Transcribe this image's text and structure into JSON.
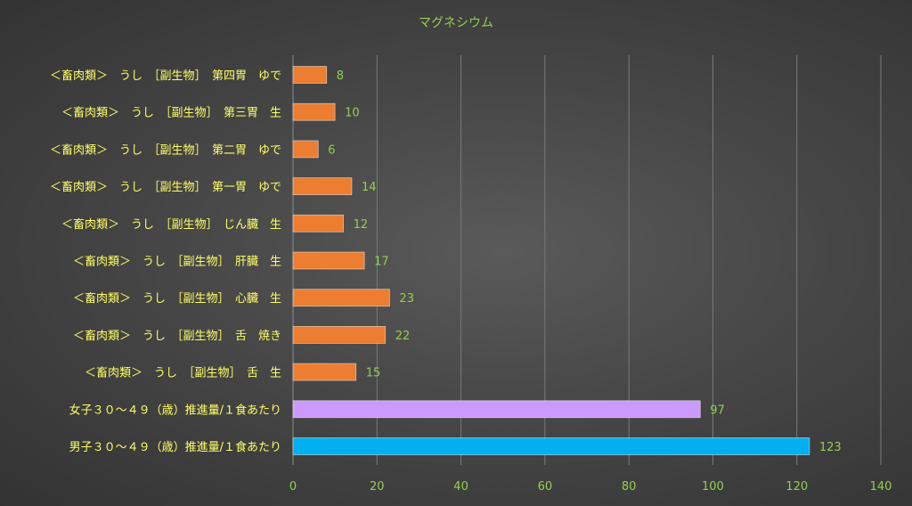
{
  "chart_data": {
    "type": "bar",
    "orientation": "horizontal",
    "title": "マグネシウム",
    "categories": [
      "＜畜肉類＞　うし　［副生物］　第四胃　ゆで",
      "＜畜肉類＞　うし　［副生物］　第三胃　生",
      "＜畜肉類＞　うし　［副生物］　第二胃　ゆで",
      "＜畜肉類＞　うし　［副生物］　第一胃　ゆで",
      "＜畜肉類＞　うし　［副生物］　じん臓　生",
      "＜畜肉類＞　うし　［副生物］　肝臓　生",
      "＜畜肉類＞　うし　［副生物］　心臓　生",
      "＜畜肉類＞　うし　［副生物］　舌　焼き",
      "＜畜肉類＞　うし　［副生物］　舌　生",
      "女子３０～４９（歳）推進量/１食あたり",
      "男子３０～４９（歳）推進量/１食あたり"
    ],
    "values": [
      8,
      10,
      6,
      14,
      12,
      17,
      23,
      22,
      15,
      97,
      123
    ],
    "value_labels": [
      "8",
      "10",
      "6",
      "14",
      "12",
      "17",
      "23",
      "22",
      "15",
      "97",
      "123"
    ],
    "bar_colors": [
      "#ED7D31",
      "#ED7D31",
      "#ED7D31",
      "#ED7D31",
      "#ED7D31",
      "#ED7D31",
      "#ED7D31",
      "#ED7D31",
      "#ED7D31",
      "#CC99FF",
      "#00B0F0"
    ],
    "xlim": [
      0,
      140
    ],
    "xticks": [
      "0",
      "20",
      "40",
      "60",
      "80",
      "100",
      "120",
      "140"
    ],
    "grid": true,
    "legend": "none",
    "colors": {
      "title": "#92D050",
      "category_labels": "#FFFF66",
      "tick_labels": "#92D050",
      "data_labels": "#92D050",
      "gridlines": "#7a7a7a"
    }
  }
}
